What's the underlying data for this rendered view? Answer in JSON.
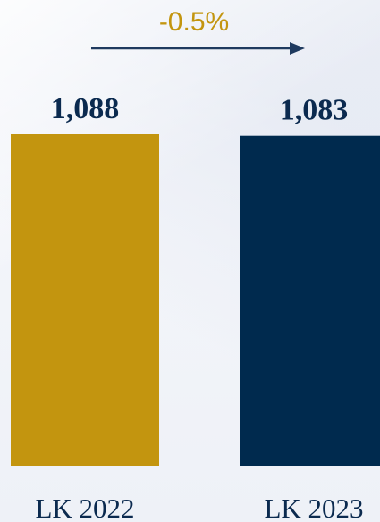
{
  "chart_data": {
    "type": "bar",
    "categories": [
      "LK 2022",
      "LK 2023"
    ],
    "values": [
      1088,
      1083
    ],
    "value_labels": [
      "1,088",
      "1,083"
    ],
    "colors": [
      "#c3950f",
      "#002a4e"
    ],
    "annotation": {
      "text": "-0.5%",
      "color": "#c3950f",
      "arrow_color": "#1f3a5f"
    },
    "title": "",
    "xlabel": "",
    "ylabel": ""
  }
}
